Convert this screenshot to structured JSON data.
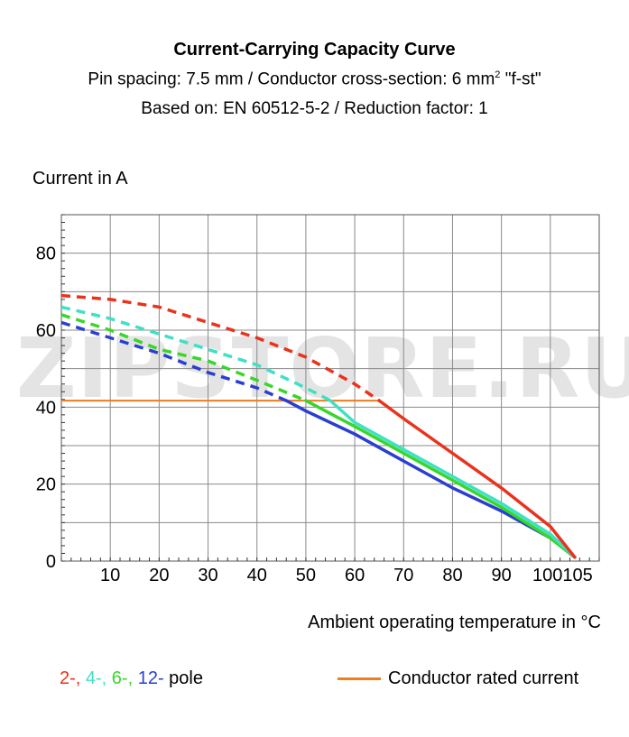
{
  "header": {
    "title": "Current-Carrying Capacity Curve",
    "subtitle_line1_main": "Pin spacing: 7.5 mm / Conductor cross-section: 6 mm",
    "subtitle_line1_sup": "2",
    "subtitle_line1_tail": " \"f-st\"",
    "subtitle_line2": "Based on: EN 60512-5-2 / Reduction factor: 1"
  },
  "watermark": "ZIPSTORE.RU",
  "legend": {
    "poles": [
      {
        "text": "2-,",
        "color": "#e8331d"
      },
      {
        "text": " 4-,",
        "color": "#3fe0c4"
      },
      {
        "text": " 6-,",
        "color": "#39d62a"
      },
      {
        "text": " 12-",
        "color": "#2a3fd1"
      },
      {
        "text": " pole",
        "color": "#000000"
      }
    ],
    "rated_label": "Conductor rated current",
    "rated_color": "#f07d1e"
  },
  "chart_data": {
    "type": "line",
    "xlabel": "Ambient operating temperature in °C",
    "ylabel": "Current in A",
    "xlim": [
      0,
      110
    ],
    "ylim": [
      0,
      90
    ],
    "x_ticks": [
      10,
      20,
      30,
      40,
      50,
      60,
      70,
      80,
      90,
      100,
      105
    ],
    "y_ticks": [
      0,
      20,
      40,
      60,
      80
    ],
    "grid": true,
    "legend_position": "bottom",
    "rated_current": {
      "value": 41.7,
      "x_range": [
        0,
        65
      ],
      "color": "#f07d1e"
    },
    "series": [
      {
        "name": "2-",
        "color": "#e8331d",
        "dashed": [
          [
            0,
            69
          ],
          [
            10,
            68
          ],
          [
            20,
            66
          ],
          [
            30,
            62
          ],
          [
            40,
            58
          ],
          [
            50,
            53
          ],
          [
            60,
            46
          ],
          [
            65,
            41.7
          ]
        ],
        "solid": [
          [
            65,
            41.7
          ],
          [
            70,
            37
          ],
          [
            80,
            28
          ],
          [
            90,
            19
          ],
          [
            100,
            9
          ],
          [
            105,
            1
          ]
        ]
      },
      {
        "name": "4-",
        "color": "#3fe0c4",
        "dashed": [
          [
            0,
            66
          ],
          [
            10,
            63
          ],
          [
            20,
            59
          ],
          [
            30,
            55
          ],
          [
            40,
            51
          ],
          [
            50,
            45
          ],
          [
            55,
            41.7
          ]
        ],
        "solid": [
          [
            55,
            41.7
          ],
          [
            60,
            36
          ],
          [
            70,
            29
          ],
          [
            80,
            22
          ],
          [
            90,
            15
          ],
          [
            100,
            7
          ],
          [
            105,
            1
          ]
        ]
      },
      {
        "name": "6-",
        "color": "#39d62a",
        "dashed": [
          [
            0,
            64
          ],
          [
            10,
            60
          ],
          [
            20,
            55
          ],
          [
            30,
            52
          ],
          [
            40,
            47
          ],
          [
            50,
            41.7
          ]
        ],
        "solid": [
          [
            50,
            41.7
          ],
          [
            60,
            35
          ],
          [
            70,
            28
          ],
          [
            80,
            21
          ],
          [
            90,
            14
          ],
          [
            100,
            6
          ],
          [
            105,
            1
          ]
        ]
      },
      {
        "name": "12-",
        "color": "#2a3fd1",
        "dashed": [
          [
            0,
            62
          ],
          [
            10,
            58
          ],
          [
            20,
            54
          ],
          [
            30,
            49
          ],
          [
            40,
            45
          ],
          [
            46,
            41.7
          ]
        ],
        "solid": [
          [
            46,
            41.7
          ],
          [
            50,
            39
          ],
          [
            60,
            33
          ],
          [
            70,
            26
          ],
          [
            80,
            19
          ],
          [
            90,
            13
          ],
          [
            100,
            6
          ],
          [
            105,
            1
          ]
        ]
      }
    ]
  }
}
